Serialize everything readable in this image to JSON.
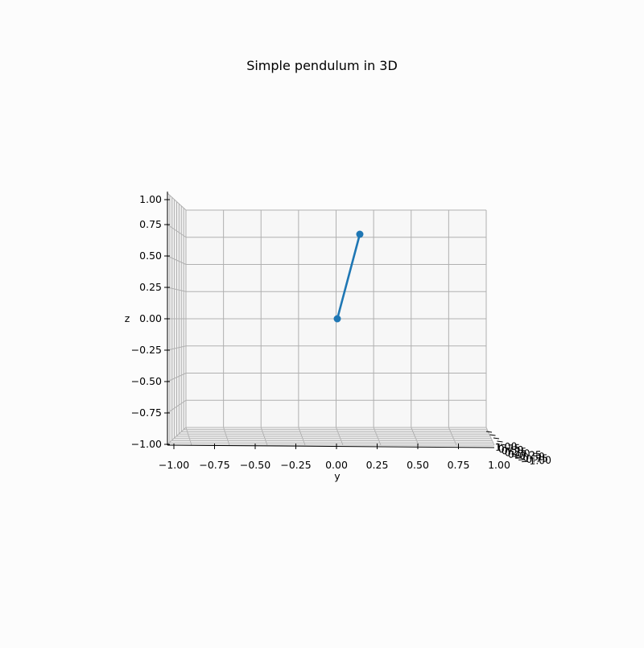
{
  "chart_data": {
    "type": "line",
    "title": "Simple pendulum in 3D",
    "ylabel": "z",
    "xlabel": "y",
    "y_axis": {
      "ylim": [
        -1.0,
        1.0
      ],
      "ticks": [
        -1.0,
        -0.75,
        -0.5,
        -0.25,
        0.0,
        0.25,
        0.5,
        0.75,
        1.0
      ],
      "tick_labels": [
        "−1.00",
        "−0.75",
        "−0.50",
        "−0.25",
        "0.00",
        "0.25",
        "0.50",
        "0.75",
        "1.00"
      ]
    },
    "z_axis": {
      "zlim": [
        -1.0,
        1.0
      ],
      "ticks": [
        -1.0,
        -0.75,
        -0.5,
        -0.25,
        0.0,
        0.25,
        0.5,
        0.75,
        1.0
      ],
      "tick_labels": [
        "−1.00",
        "−0.75",
        "−0.50",
        "−0.25",
        "0.00",
        "0.25",
        "0.50",
        "0.75",
        "1.00"
      ]
    },
    "x_axis_ticks_compressed": [
      "1.00",
      "0.75",
      "0.50",
      "0.25",
      "0.00",
      "−0.25",
      "−0.50",
      "−0.75",
      "−1.00"
    ],
    "grid": true,
    "series": [
      {
        "color": "#1f77b4",
        "points": [
          {
            "y": 0.0,
            "z": 0.0
          },
          {
            "y": 0.15,
            "z": 0.7
          }
        ]
      }
    ]
  }
}
